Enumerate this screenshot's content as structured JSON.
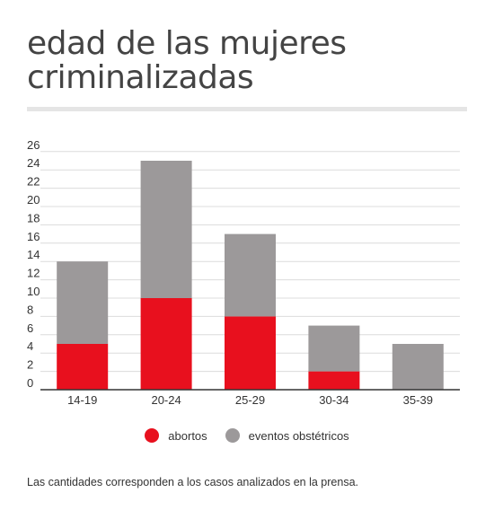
{
  "chart_data": {
    "type": "bar",
    "stacked": true,
    "title": "edad de las mujeres criminalizadas",
    "categories": [
      "14-19",
      "20-24",
      "25-29",
      "30-34",
      "35-39"
    ],
    "series": [
      {
        "name": "abortos",
        "color": "#e8101e",
        "values": [
          5,
          10,
          8,
          2,
          0
        ]
      },
      {
        "name": "eventos obstétricos",
        "color": "#9c999a",
        "values": [
          9,
          15,
          9,
          5,
          5
        ]
      }
    ],
    "ylim": [
      0,
      26
    ],
    "yticks": [
      "0",
      "2",
      "4",
      "6",
      "8",
      "10",
      "12",
      "14",
      "16",
      "18",
      "20",
      "22",
      "24",
      "26"
    ],
    "grid": true,
    "legend_position": "bottom-center",
    "footnote": "Las cantidades corresponden a los casos analizados en la prensa."
  }
}
